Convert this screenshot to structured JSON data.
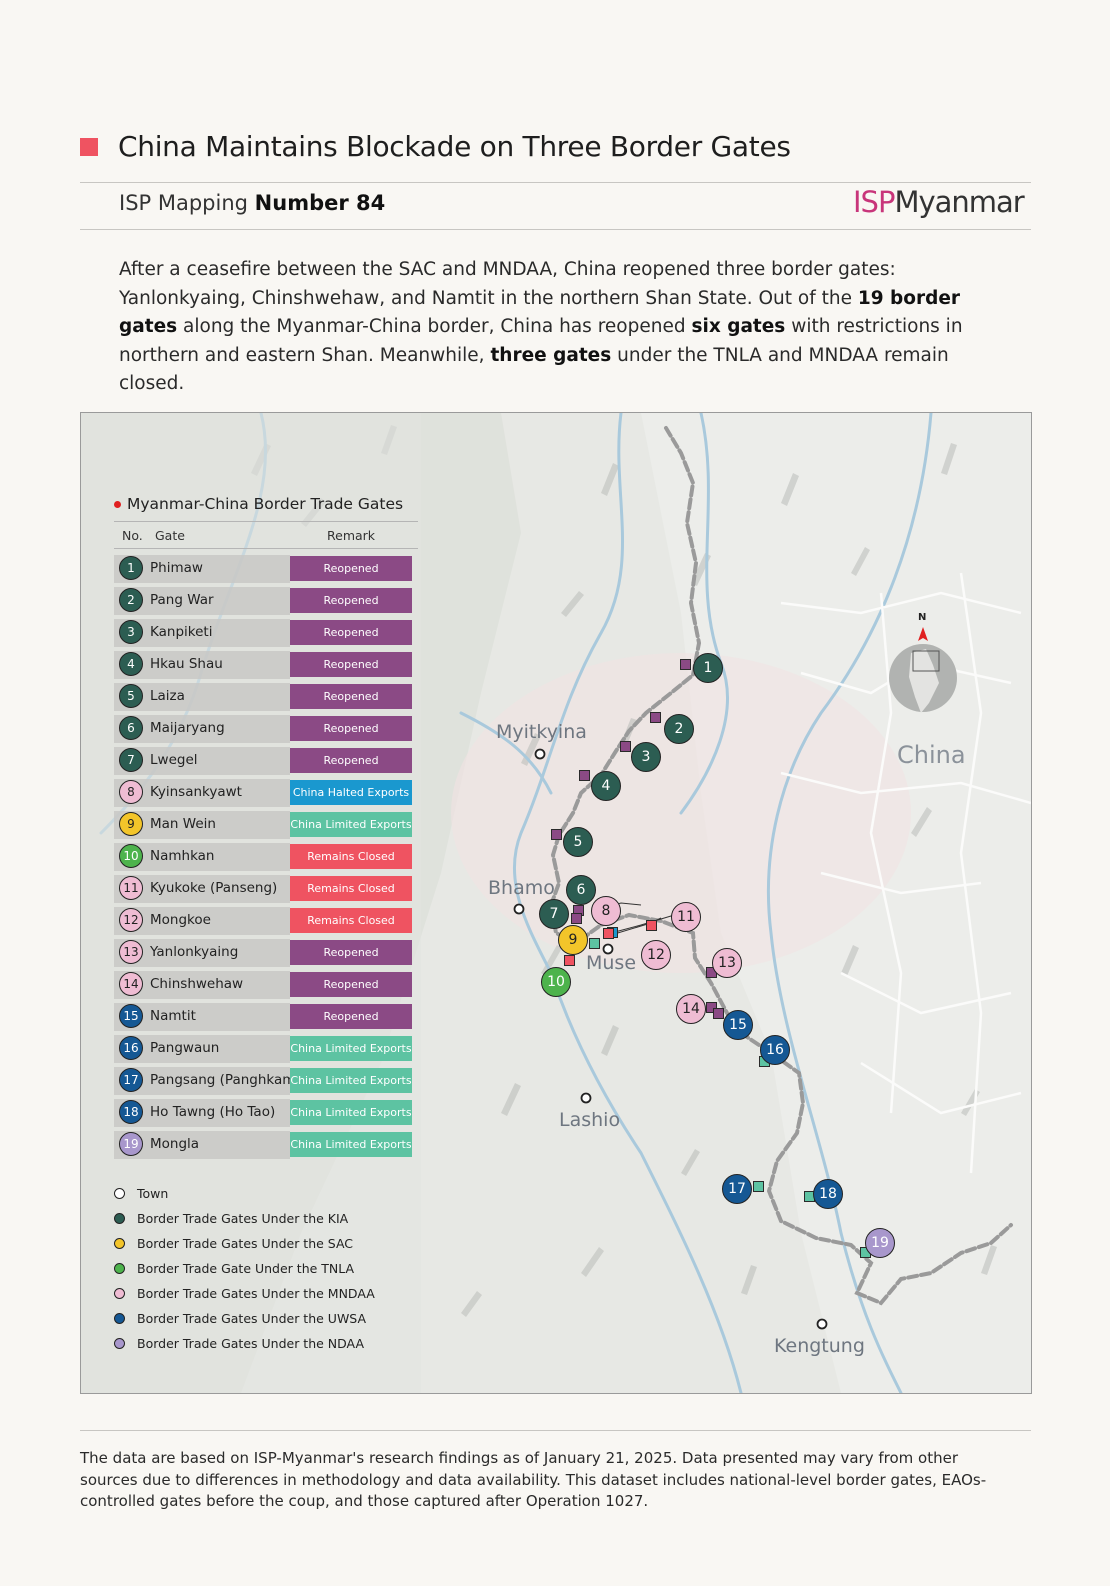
{
  "title": "China Maintains Blockade on Three Border Gates",
  "subtitle": {
    "prefix": "ISP Mapping",
    "number": "Number 84"
  },
  "logo": {
    "isp": "ISP",
    "myanmar": "Myanmar"
  },
  "intro": {
    "p1": "After a ceasefire between the SAC and MNDAA, China reopened three border gates: Yanlonkyaing, Chinshwehaw, and Namtit in the northern Shan State. Out of the ",
    "b1": "19 border gates",
    "p2": " along the Myanmar-China border, China has reopened ",
    "b2": "six gates",
    "p3": " with restrictions in northern and eastern Shan. Meanwhile, ",
    "b3": "three gates",
    "p4": " under the TNLA and MNDAA remain closed."
  },
  "colors": {
    "kia": "#2c5d52",
    "sac": "#f3c52a",
    "tnla": "#4db34c",
    "mndaa": "#efbcd3",
    "uwsa": "#155894",
    "ndaa": "#a897cc",
    "reopened": "#8b4a85",
    "halted": "#1a98cf",
    "limited": "#5dc3a2",
    "closed": "#ef5361"
  },
  "legend": {
    "title": "Myanmar-China Border Trade Gates",
    "col_no": "No.",
    "col_gate": "Gate",
    "col_remark": "Remark",
    "keys": [
      {
        "label": "Town",
        "color": "#ffffff"
      },
      {
        "label": "Border Trade Gates Under the KIA",
        "color": "#2c5d52"
      },
      {
        "label": "Border Trade Gates Under the SAC",
        "color": "#f3c52a"
      },
      {
        "label": "Border Trade Gate Under the TNLA",
        "color": "#4db34c"
      },
      {
        "label": "Border Trade Gates Under the MNDAA",
        "color": "#efbcd3"
      },
      {
        "label": "Border Trade Gates Under the UWSA",
        "color": "#155894"
      },
      {
        "label": "Border Trade Gates Under the NDAA",
        "color": "#a897cc"
      }
    ]
  },
  "gates": [
    {
      "no": "1",
      "name": "Phimaw",
      "remark": "Reopened",
      "group": "kia",
      "status": "reopened"
    },
    {
      "no": "2",
      "name": "Pang War",
      "remark": "Reopened",
      "group": "kia",
      "status": "reopened"
    },
    {
      "no": "3",
      "name": "Kanpiketi",
      "remark": "Reopened",
      "group": "kia",
      "status": "reopened"
    },
    {
      "no": "4",
      "name": "Hkau Shau",
      "remark": "Reopened",
      "group": "kia",
      "status": "reopened"
    },
    {
      "no": "5",
      "name": "Laiza",
      "remark": "Reopened",
      "group": "kia",
      "status": "reopened"
    },
    {
      "no": "6",
      "name": "Maijaryang",
      "remark": "Reopened",
      "group": "kia",
      "status": "reopened"
    },
    {
      "no": "7",
      "name": "Lwegel",
      "remark": "Reopened",
      "group": "kia",
      "status": "reopened"
    },
    {
      "no": "8",
      "name": "Kyinsankyawt",
      "remark": "China Halted Exports",
      "group": "mndaa",
      "status": "halted"
    },
    {
      "no": "9",
      "name": "Man Wein",
      "remark": "China Limited Exports",
      "group": "sac",
      "status": "limited"
    },
    {
      "no": "10",
      "name": "Namhkan",
      "remark": "Remains Closed",
      "group": "tnla",
      "status": "closed"
    },
    {
      "no": "11",
      "name": "Kyukoke (Panseng)",
      "remark": "Remains Closed",
      "group": "mndaa",
      "status": "closed"
    },
    {
      "no": "12",
      "name": "Mongkoe",
      "remark": "Remains Closed",
      "group": "mndaa",
      "status": "closed"
    },
    {
      "no": "13",
      "name": "Yanlonkyaing",
      "remark": "Reopened",
      "group": "mndaa",
      "status": "reopened"
    },
    {
      "no": "14",
      "name": "Chinshwehaw",
      "remark": "Reopened",
      "group": "mndaa",
      "status": "reopened"
    },
    {
      "no": "15",
      "name": "Namtit",
      "remark": "Reopened",
      "group": "uwsa",
      "status": "reopened"
    },
    {
      "no": "16",
      "name": "Pangwaun",
      "remark": "China Limited Exports",
      "group": "uwsa",
      "status": "limited"
    },
    {
      "no": "17",
      "name": "Pangsang (Panghkam)",
      "remark": "China Limited Exports",
      "group": "uwsa",
      "status": "limited"
    },
    {
      "no": "18",
      "name": "Ho Tawng (Ho Tao)",
      "remark": "China Limited Exports",
      "group": "uwsa",
      "status": "limited"
    },
    {
      "no": "19",
      "name": "Mongla",
      "remark": "China Limited Exports",
      "group": "ndaa",
      "status": "limited"
    }
  ],
  "towns": {
    "myitkyina": "Myitkyina",
    "bhamo": "Bhamo",
    "muse": "Muse",
    "lashio": "Lashio",
    "kengtung": "Kengtung"
  },
  "country_label": "China",
  "north_label": "N",
  "footnote": "The data are based on ISP-Myanmar's research findings as of January 21, 2025. Data presented may vary from other sources due to differences in methodology and data availability. This dataset includes national-level border gates, EAOs-controlled gates before the coup, and those captured after Operation 1027."
}
